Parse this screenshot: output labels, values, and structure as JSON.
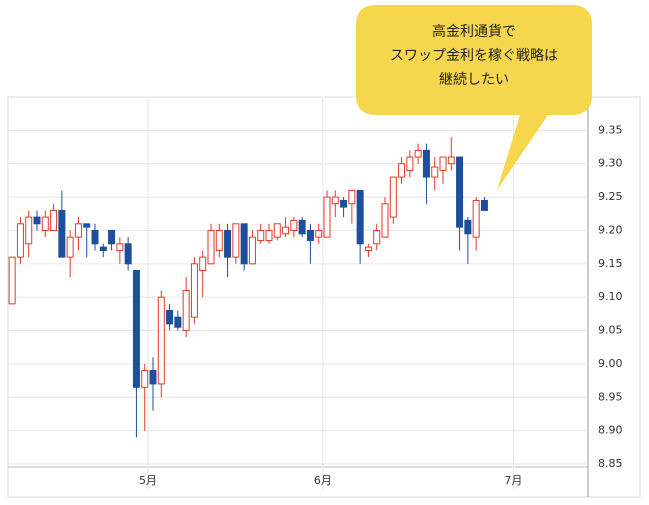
{
  "chart_data": {
    "type": "candlestick",
    "annotation": [
      "高金利通貨で",
      "スワップ金利を稼ぐ戦略は",
      "継続したい"
    ],
    "x": [
      0,
      1,
      2,
      3,
      4,
      5,
      6,
      7,
      8,
      9,
      10,
      11,
      12,
      13,
      14,
      15,
      16,
      17,
      18,
      19,
      20,
      21,
      22,
      23,
      24,
      25,
      26,
      27,
      28,
      29,
      30,
      31,
      32,
      33,
      34,
      35,
      36,
      37,
      38,
      39,
      40,
      41,
      42,
      43,
      44,
      45,
      46,
      47,
      48,
      49,
      50,
      51,
      52,
      53,
      54,
      55,
      56,
      57
    ],
    "open": [
      9.09,
      9.16,
      9.18,
      9.22,
      9.2,
      9.2,
      9.23,
      9.16,
      9.19,
      9.21,
      9.2,
      9.175,
      9.2,
      9.17,
      9.18,
      9.14,
      8.965,
      8.99,
      8.97,
      9.08,
      9.07,
      9.05,
      9.07,
      9.14,
      9.15,
      9.17,
      9.2,
      9.16,
      9.21,
      9.15,
      9.185,
      9.185,
      9.19,
      9.195,
      9.2,
      9.215,
      9.2,
      9.19,
      9.19,
      9.24,
      9.245,
      9.24,
      9.26,
      9.17,
      9.18,
      9.19,
      9.22,
      9.28,
      9.29,
      9.31,
      9.32,
      9.28,
      9.29,
      9.3,
      9.31,
      9.215,
      9.19,
      9.245
    ],
    "high": [
      9.16,
      9.22,
      9.23,
      9.23,
      9.23,
      9.24,
      9.26,
      9.2,
      9.22,
      9.21,
      9.21,
      9.18,
      9.2,
      9.19,
      9.19,
      9.14,
      9.0,
      9.01,
      9.11,
      9.09,
      9.08,
      9.13,
      9.16,
      9.17,
      9.21,
      9.21,
      9.21,
      9.21,
      9.21,
      9.2,
      9.21,
      9.21,
      9.21,
      9.22,
      9.22,
      9.22,
      9.21,
      9.21,
      9.26,
      9.26,
      9.25,
      9.26,
      9.26,
      9.18,
      9.21,
      9.25,
      9.28,
      9.31,
      9.32,
      9.33,
      9.33,
      9.31,
      9.31,
      9.34,
      9.31,
      9.22,
      9.25,
      9.25
    ],
    "low": [
      9.09,
      9.15,
      9.16,
      9.2,
      9.19,
      9.2,
      9.16,
      9.13,
      9.17,
      9.16,
      9.17,
      9.16,
      9.17,
      9.15,
      9.14,
      8.89,
      8.9,
      8.93,
      8.95,
      9.05,
      9.05,
      9.04,
      9.06,
      9.1,
      9.15,
      9.16,
      9.13,
      9.15,
      9.14,
      9.15,
      9.18,
      9.18,
      9.185,
      9.19,
      9.19,
      9.19,
      9.15,
      9.18,
      9.19,
      9.22,
      9.22,
      9.21,
      9.15,
      9.16,
      9.17,
      9.19,
      9.21,
      9.27,
      9.28,
      9.3,
      9.24,
      9.26,
      9.27,
      9.29,
      9.17,
      9.15,
      9.17,
      9.23
    ],
    "close": [
      9.16,
      9.21,
      9.22,
      9.21,
      9.22,
      9.23,
      9.16,
      9.19,
      9.21,
      9.205,
      9.18,
      9.17,
      9.18,
      9.18,
      9.15,
      8.965,
      8.99,
      8.97,
      9.1,
      9.06,
      9.055,
      9.11,
      9.15,
      9.16,
      9.2,
      9.2,
      9.16,
      9.21,
      9.15,
      9.19,
      9.2,
      9.2,
      9.21,
      9.205,
      9.215,
      9.195,
      9.185,
      9.2,
      9.25,
      9.25,
      9.235,
      9.26,
      9.18,
      9.175,
      9.2,
      9.24,
      9.28,
      9.3,
      9.31,
      9.32,
      9.28,
      9.295,
      9.31,
      9.31,
      9.205,
      9.195,
      9.245,
      9.23
    ],
    "up_color": "#e23a2a",
    "down_color": "#1d4f9c",
    "xlim": [
      -0.5,
      69.5
    ],
    "xticks": [
      {
        "value": 16.4,
        "label": "5月"
      },
      {
        "value": 37.5,
        "label": "6月"
      },
      {
        "value": 60.5,
        "label": "7月"
      }
    ],
    "ylim": [
      8.85,
      9.4
    ],
    "yticks": [
      8.85,
      {
        "value": 8.9,
        "label": "8.90"
      },
      8.95,
      {
        "value": 9.0,
        "label": "9.00"
      },
      9.05,
      {
        "value": 9.1,
        "label": "9.10"
      },
      9.15,
      {
        "value": 9.2,
        "label": "9.20"
      },
      9.25,
      {
        "value": 9.3,
        "label": "9.30"
      },
      9.35
    ],
    "grid": true
  }
}
